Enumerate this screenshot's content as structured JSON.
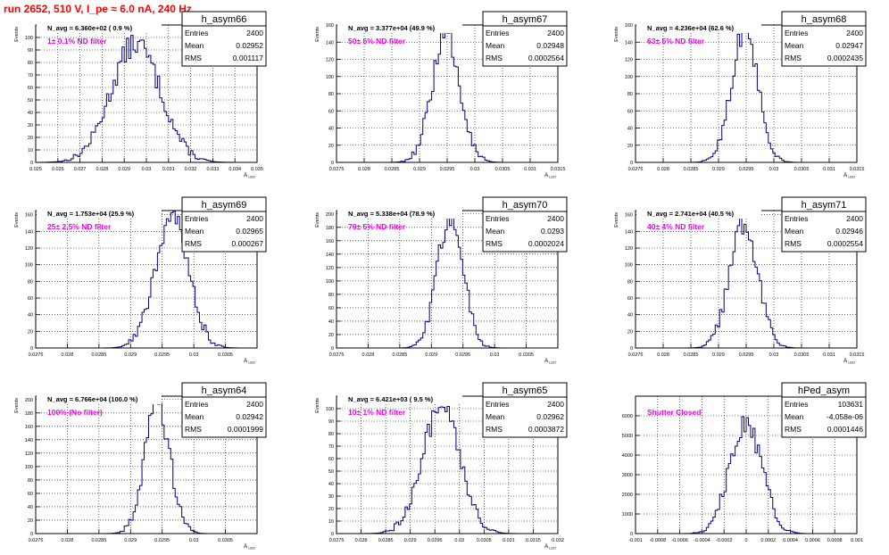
{
  "run_title": "run 2652,   510 V, I_pe ≈ 6.0 nA, 240 Hz",
  "colors": {
    "hist": "#000080",
    "magenta": "#ee00ee",
    "red": "#ff0000",
    "grid": "#000000"
  },
  "chart_data": [
    {
      "type": "bar",
      "name": "h_asym66",
      "navg": "N_avg = 6.360e+02 ( 0.9 %)",
      "filter": "1± 0.1% ND filter",
      "stats": {
        "entries_label": "Entries",
        "entries": "2400",
        "mean_label": "Mean",
        "mean": "0.02952",
        "rms_label": "RMS",
        "rms": "0.001117"
      },
      "ylabel": "Events",
      "xlabel": "A_LED",
      "xlim": [
        0.025,
        0.035
      ],
      "ylim": [
        0,
        110
      ],
      "xticks": [
        "0.025",
        "0.026",
        "0.027",
        "0.028",
        "0.029",
        "0.03",
        "0.031",
        "0.032",
        "0.033",
        "0.034",
        "0.035"
      ],
      "yticks": [
        "0",
        "10",
        "20",
        "30",
        "40",
        "50",
        "60",
        "70",
        "80",
        "90",
        "100"
      ],
      "hist": {
        "mean": 0.02952,
        "sigma": 0.001117,
        "peak": 95,
        "bins": 100
      }
    },
    {
      "type": "bar",
      "name": "h_asym67",
      "navg": "N_avg = 3.377e+04 (49.9 %)",
      "filter": "50± 5% ND filter",
      "stats": {
        "entries_label": "Entries",
        "entries": "2400",
        "mean_label": "Mean",
        "mean": "0.02948",
        "rms_label": "RMS",
        "rms": "0.0002564"
      },
      "ylabel": "Events",
      "xlabel": "A_LED",
      "xlim": [
        0.0275,
        0.0315
      ],
      "ylim": [
        0,
        160
      ],
      "xticks": [
        "0.0275",
        "0.028",
        "0.0285",
        "0.029",
        "0.0295",
        "0.03",
        "0.0305",
        "0.031",
        "0.0315"
      ],
      "yticks": [
        "0",
        "20",
        "40",
        "60",
        "80",
        "100",
        "120",
        "140",
        "160"
      ],
      "hist": {
        "mean": 0.02948,
        "sigma": 0.0002564,
        "peak": 145,
        "bins": 100
      }
    },
    {
      "type": "bar",
      "name": "h_asym68",
      "navg": "N_avg = 4.236e+04 (62.6 %)",
      "filter": "63± 5% ND filter",
      "stats": {
        "entries_label": "Entries",
        "entries": "2400",
        "mean_label": "Mean",
        "mean": "0.02947",
        "rms_label": "RMS",
        "rms": "0.0002435"
      },
      "ylabel": "Events",
      "xlabel": "A_LED",
      "xlim": [
        0.0275,
        0.0315
      ],
      "ylim": [
        0,
        160
      ],
      "xticks": [
        "0.0275",
        "0.028",
        "0.0285",
        "0.029",
        "0.0295",
        "0.03",
        "0.0305",
        "0.031",
        "0.0315"
      ],
      "yticks": [
        "0",
        "20",
        "40",
        "60",
        "80",
        "100",
        "120",
        "140",
        "160"
      ],
      "hist": {
        "mean": 0.02947,
        "sigma": 0.0002435,
        "peak": 150,
        "bins": 100
      }
    },
    {
      "type": "bar",
      "name": "h_asym69",
      "navg": "N_avg = 1.753e+04 (25.9 %)",
      "filter": "25± 2.5% ND filter",
      "stats": {
        "entries_label": "Entries",
        "entries": "2400",
        "mean_label": "Mean",
        "mean": "0.02965",
        "rms_label": "RMS",
        "rms": "0.000267"
      },
      "ylabel": "Events",
      "xlabel": "A_LED",
      "xlim": [
        0.0275,
        0.031
      ],
      "ylim": [
        0,
        165
      ],
      "xticks": [
        "0.0275",
        "0.028",
        "0.0285",
        "0.029",
        "0.0295",
        "0.03",
        "0.0305"
      ],
      "yticks": [
        "0",
        "20",
        "40",
        "60",
        "80",
        "100",
        "120",
        "140",
        "160"
      ],
      "hist": {
        "mean": 0.02965,
        "sigma": 0.000267,
        "peak": 158,
        "bins": 100
      }
    },
    {
      "type": "bar",
      "name": "h_asym70",
      "navg": "N_avg = 5.338e+04 (78.9 %)",
      "filter": "79± 5% ND filter",
      "stats": {
        "entries_label": "Entries",
        "entries": "2400",
        "mean_label": "Mean",
        "mean": "0.0293",
        "rms_label": "RMS",
        "rms": "0.0002024"
      },
      "ylabel": "Events",
      "xlabel": "A_LED",
      "xlim": [
        0.0275,
        0.031
      ],
      "ylim": [
        0,
        205
      ],
      "xticks": [
        "0.0275",
        "0.028",
        "0.0285",
        "0.029",
        "0.0295",
        "0.03",
        "0.0305"
      ],
      "yticks": [
        "0",
        "20",
        "40",
        "60",
        "80",
        "100",
        "120",
        "140",
        "160",
        "180",
        "200"
      ],
      "hist": {
        "mean": 0.0293,
        "sigma": 0.0002024,
        "peak": 198,
        "bins": 100
      }
    },
    {
      "type": "bar",
      "name": "h_asym71",
      "navg": "N_avg = 2.741e+04 (40.5 %)",
      "filter": "40± 4% ND filter",
      "stats": {
        "entries_label": "Entries",
        "entries": "2400",
        "mean_label": "Mean",
        "mean": "0.02946",
        "rms_label": "RMS",
        "rms": "0.0002554"
      },
      "ylabel": "Events",
      "xlabel": "A_LED",
      "xlim": [
        0.0275,
        0.0315
      ],
      "ylim": [
        0,
        165
      ],
      "xticks": [
        "0.0275",
        "0.028",
        "0.0285",
        "0.029",
        "0.0295",
        "0.03",
        "0.0305",
        "0.031",
        "0.0315"
      ],
      "yticks": [
        "0",
        "20",
        "40",
        "60",
        "80",
        "100",
        "120",
        "140",
        "160"
      ],
      "hist": {
        "mean": 0.02946,
        "sigma": 0.0002554,
        "peak": 150,
        "bins": 100
      }
    },
    {
      "type": "bar",
      "name": "h_asym64",
      "navg": "N_avg = 6.766e+04 (100.0 %)",
      "filter": "100% (No filter)",
      "stats": {
        "entries_label": "Entries",
        "entries": "2400",
        "mean_label": "Mean",
        "mean": "0.02942",
        "rms_label": "RMS",
        "rms": "0.0001999"
      },
      "ylabel": "Events",
      "xlabel": "A_LED",
      "xlim": [
        0.0275,
        0.031
      ],
      "ylim": [
        0,
        205
      ],
      "xticks": [
        "0.0275",
        "0.028",
        "0.0285",
        "0.029",
        "0.0295",
        "0.03",
        "0.0305"
      ],
      "yticks": [
        "0",
        "20",
        "40",
        "60",
        "80",
        "100",
        "120",
        "140",
        "160",
        "180",
        "200"
      ],
      "hist": {
        "mean": 0.02942,
        "sigma": 0.0001999,
        "peak": 195,
        "bins": 100
      }
    },
    {
      "type": "bar",
      "name": "h_asym65",
      "navg": "N_avg = 6.421e+03 ( 9.5 %)",
      "filter": "10± 1% ND filter",
      "stats": {
        "entries_label": "Entries",
        "entries": "2400",
        "mean_label": "Mean",
        "mean": "0.02962",
        "rms_label": "RMS",
        "rms": "0.0003872"
      },
      "ylabel": "Events",
      "xlabel": "A_LED",
      "xlim": [
        0.0275,
        0.032
      ],
      "ylim": [
        0,
        110
      ],
      "xticks": [
        "0.0275",
        "0.028",
        "0.0285",
        "0.029",
        "0.0295",
        "0.03",
        "0.0305",
        "0.031",
        "0.0315",
        "0.032"
      ],
      "yticks": [
        "0",
        "10",
        "20",
        "30",
        "40",
        "50",
        "60",
        "70",
        "80",
        "90",
        "100"
      ],
      "hist": {
        "mean": 0.02962,
        "sigma": 0.0003872,
        "peak": 100,
        "bins": 100
      }
    },
    {
      "type": "bar",
      "name": "hPed_asym",
      "navg": "",
      "filter": "Shutter Closed",
      "stats": {
        "entries_label": "Entries",
        "entries": "103631",
        "mean_label": "Mean",
        "mean": "-4.058e-06",
        "rms_label": "RMS",
        "rms": "0.0001446"
      },
      "ylabel": "",
      "xlabel": "",
      "xlim": [
        -0.001,
        0.001
      ],
      "ylim": [
        0,
        7000
      ],
      "xticks": [
        "-0.001",
        "-0.0008",
        "-0.0006",
        "-0.0004",
        "-0.0002",
        "0",
        "0.0002",
        "0.0004",
        "0.0006",
        "0.0008",
        "0.001"
      ],
      "yticks": [
        "0",
        "1000",
        "2000",
        "3000",
        "4000",
        "5000",
        "6000"
      ],
      "hist": {
        "mean": -4.058e-06,
        "sigma": 0.0001446,
        "peak": 5700,
        "bins": 100
      }
    }
  ]
}
